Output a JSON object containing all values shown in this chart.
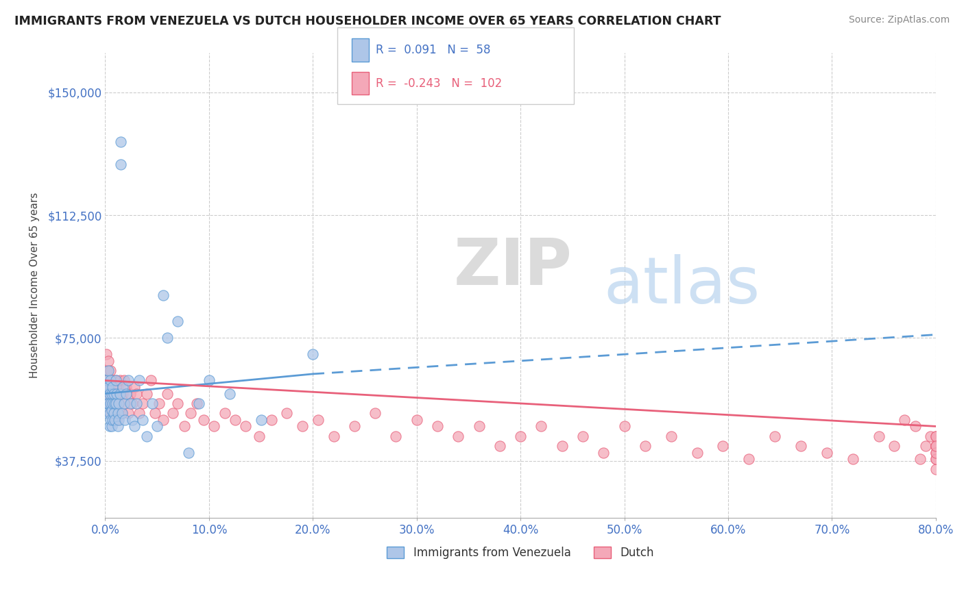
{
  "title": "IMMIGRANTS FROM VENEZUELA VS DUTCH HOUSEHOLDER INCOME OVER 65 YEARS CORRELATION CHART",
  "source": "Source: ZipAtlas.com",
  "ylabel": "Householder Income Over 65 years",
  "xlim": [
    0.0,
    0.8
  ],
  "ylim": [
    20000,
    162000
  ],
  "yticks": [
    37500,
    75000,
    112500,
    150000
  ],
  "ytick_labels": [
    "$37,500",
    "$75,000",
    "$112,500",
    "$150,000"
  ],
  "xtick_labels": [
    "0.0%",
    "10.0%",
    "20.0%",
    "30.0%",
    "40.0%",
    "50.0%",
    "60.0%",
    "70.0%",
    "80.0%"
  ],
  "xticks": [
    0.0,
    0.1,
    0.2,
    0.3,
    0.4,
    0.5,
    0.6,
    0.7,
    0.8
  ],
  "gridline_color": "#cccccc",
  "background_color": "#ffffff",
  "watermark_zip": "ZIP",
  "watermark_atlas": "atlas",
  "blue_color": "#5B9BD5",
  "blue_fill": "#AEC6E8",
  "pink_color": "#E8607A",
  "pink_fill": "#F4A8B8",
  "blue_R": 0.091,
  "blue_N": 58,
  "pink_R": -0.243,
  "pink_N": 102,
  "blue_scatter_x": [
    0.001,
    0.001,
    0.002,
    0.002,
    0.002,
    0.003,
    0.003,
    0.003,
    0.004,
    0.004,
    0.004,
    0.005,
    0.005,
    0.005,
    0.006,
    0.006,
    0.006,
    0.007,
    0.007,
    0.007,
    0.008,
    0.008,
    0.009,
    0.009,
    0.01,
    0.01,
    0.011,
    0.012,
    0.012,
    0.013,
    0.013,
    0.014,
    0.015,
    0.015,
    0.016,
    0.017,
    0.018,
    0.019,
    0.02,
    0.022,
    0.024,
    0.026,
    0.028,
    0.03,
    0.033,
    0.036,
    0.04,
    0.045,
    0.05,
    0.056,
    0.06,
    0.07,
    0.08,
    0.09,
    0.1,
    0.12,
    0.15,
    0.2
  ],
  "blue_scatter_y": [
    60000,
    55000,
    62000,
    58000,
    52000,
    65000,
    60000,
    55000,
    58000,
    52000,
    48000,
    62000,
    55000,
    50000,
    58000,
    53000,
    48000,
    60000,
    55000,
    50000,
    58000,
    52000,
    55000,
    50000,
    62000,
    55000,
    58000,
    52000,
    48000,
    55000,
    50000,
    58000,
    128000,
    135000,
    52000,
    60000,
    55000,
    50000,
    58000,
    62000,
    55000,
    50000,
    48000,
    55000,
    62000,
    50000,
    45000,
    55000,
    48000,
    88000,
    75000,
    80000,
    40000,
    55000,
    62000,
    58000,
    50000,
    70000
  ],
  "pink_scatter_x": [
    0.001,
    0.001,
    0.002,
    0.002,
    0.003,
    0.003,
    0.003,
    0.004,
    0.004,
    0.005,
    0.005,
    0.005,
    0.006,
    0.006,
    0.007,
    0.007,
    0.008,
    0.008,
    0.009,
    0.009,
    0.01,
    0.01,
    0.011,
    0.011,
    0.012,
    0.013,
    0.014,
    0.015,
    0.016,
    0.017,
    0.018,
    0.019,
    0.02,
    0.022,
    0.024,
    0.026,
    0.028,
    0.03,
    0.033,
    0.036,
    0.04,
    0.044,
    0.048,
    0.052,
    0.056,
    0.06,
    0.065,
    0.07,
    0.076,
    0.082,
    0.088,
    0.095,
    0.105,
    0.115,
    0.125,
    0.135,
    0.148,
    0.16,
    0.175,
    0.19,
    0.205,
    0.22,
    0.24,
    0.26,
    0.28,
    0.3,
    0.32,
    0.34,
    0.36,
    0.38,
    0.4,
    0.42,
    0.44,
    0.46,
    0.48,
    0.5,
    0.52,
    0.545,
    0.57,
    0.595,
    0.62,
    0.645,
    0.67,
    0.695,
    0.72,
    0.745,
    0.76,
    0.77,
    0.78,
    0.785,
    0.79,
    0.795,
    0.8,
    0.8,
    0.8,
    0.8,
    0.8,
    0.8,
    0.8,
    0.8,
    0.8,
    0.8
  ],
  "pink_scatter_y": [
    62000,
    70000,
    58000,
    65000,
    60000,
    55000,
    68000,
    58000,
    52000,
    65000,
    60000,
    55000,
    58000,
    52000,
    62000,
    55000,
    60000,
    52000,
    58000,
    50000,
    62000,
    55000,
    58000,
    50000,
    60000,
    55000,
    62000,
    58000,
    52000,
    58000,
    62000,
    55000,
    60000,
    52000,
    58000,
    55000,
    60000,
    58000,
    52000,
    55000,
    58000,
    62000,
    52000,
    55000,
    50000,
    58000,
    52000,
    55000,
    48000,
    52000,
    55000,
    50000,
    48000,
    52000,
    50000,
    48000,
    45000,
    50000,
    52000,
    48000,
    50000,
    45000,
    48000,
    52000,
    45000,
    50000,
    48000,
    45000,
    48000,
    42000,
    45000,
    48000,
    42000,
    45000,
    40000,
    48000,
    42000,
    45000,
    40000,
    42000,
    38000,
    45000,
    42000,
    40000,
    38000,
    45000,
    42000,
    50000,
    48000,
    38000,
    42000,
    45000,
    35000,
    42000,
    38000,
    40000,
    45000,
    42000,
    38000,
    40000,
    45000,
    42000
  ],
  "blue_trend_x0": 0.0,
  "blue_trend_y0": 58000,
  "blue_trend_x1": 0.2,
  "blue_trend_y1": 64000,
  "blue_trend_x2": 0.8,
  "blue_trend_y2": 76000,
  "pink_trend_x0": 0.0,
  "pink_trend_y0": 62000,
  "pink_trend_x1": 0.8,
  "pink_trend_y1": 48000
}
